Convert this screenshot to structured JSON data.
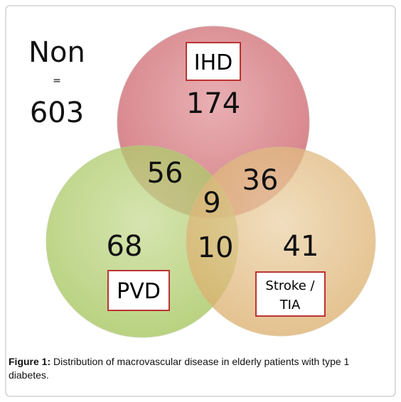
{
  "non_group": {
    "label": "Non",
    "equals": "=",
    "count": 603
  },
  "sets": [
    {
      "label": [
        "IHD"
      ]
    },
    {
      "label": [
        "PVD"
      ]
    },
    {
      "label": [
        "Stroke /",
        "TIA"
      ]
    }
  ],
  "regions": {
    "ihd_only": 174,
    "ihd_pvd": 56,
    "ihd_stroke": 36,
    "all_three": 9,
    "pvd_only": 68,
    "pvd_stroke": 10,
    "stroke_only": 41
  },
  "caption": {
    "label": "Figure 1:",
    "text": " Distribution of macrovascular disease in elderly patients with type 1 diabetes."
  }
}
